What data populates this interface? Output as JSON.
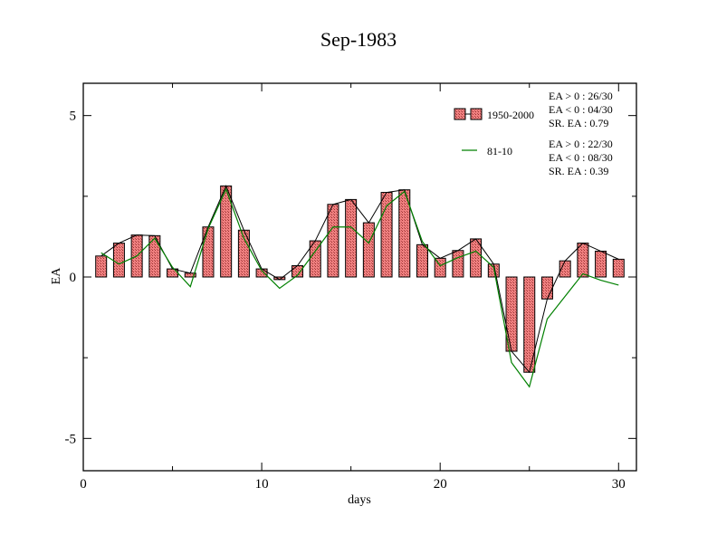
{
  "chart_data": {
    "type": "bar",
    "title": "Sep-1983",
    "xlabel": "days",
    "ylabel": "EA",
    "xlim": [
      0,
      31
    ],
    "ylim": [
      -6,
      6
    ],
    "x_ticks": [
      0,
      10,
      20,
      30
    ],
    "y_ticks": [
      -5,
      0,
      5
    ],
    "x": [
      1,
      2,
      3,
      4,
      5,
      6,
      7,
      8,
      9,
      10,
      11,
      12,
      13,
      14,
      15,
      16,
      17,
      18,
      19,
      20,
      21,
      22,
      23,
      24,
      25,
      26,
      27,
      28,
      29,
      30
    ],
    "series": [
      {
        "name": "1950-2000",
        "kind": "bar",
        "color": "#f08080",
        "values": [
          0.65,
          1.05,
          1.3,
          1.28,
          0.25,
          0.12,
          1.55,
          2.82,
          1.45,
          0.25,
          -0.08,
          0.35,
          1.12,
          2.25,
          2.4,
          1.68,
          2.62,
          2.7,
          1.0,
          0.58,
          0.82,
          1.18,
          0.4,
          -2.3,
          -2.95,
          -0.68,
          0.5,
          1.05,
          0.8,
          0.55
        ]
      },
      {
        "name": "81-10",
        "kind": "line",
        "color": "#008000",
        "values": [
          0.75,
          0.4,
          0.65,
          1.2,
          0.3,
          -0.3,
          1.5,
          2.72,
          1.2,
          0.2,
          -0.35,
          0.05,
          0.8,
          1.55,
          1.55,
          1.05,
          2.2,
          2.65,
          1.1,
          0.35,
          0.6,
          0.8,
          0.3,
          -2.65,
          -3.4,
          -1.3,
          -0.6,
          0.1,
          -0.1,
          -0.25
        ]
      }
    ],
    "legend": {
      "placement": "top-right",
      "entries": [
        {
          "label": "1950-2000",
          "stats": [
            "EA > 0 : 26/30",
            "EA < 0 : 04/30",
            "SR. EA :  0.79"
          ]
        },
        {
          "label": "81-10",
          "stats": [
            "EA > 0 : 22/30",
            "EA < 0 : 08/30",
            "SR. EA :  0.39"
          ]
        }
      ]
    }
  }
}
